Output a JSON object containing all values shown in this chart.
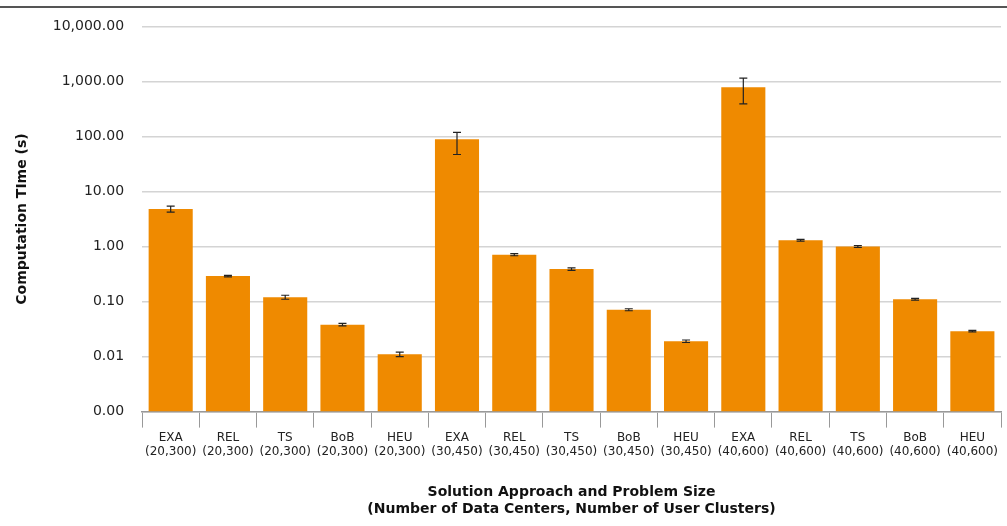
{
  "chart_data": {
    "type": "bar",
    "xlabel": "Solution Approach and Problem Size\n(Number of Data Centers, Number of User Clusters)",
    "ylabel": "Computation TIme (s)",
    "categories": [
      "EXA\n(20,300)",
      "REL\n(20,300)",
      "TS\n(20,300)",
      "BoB\n(20,300)",
      "HEU\n(20,300)",
      "EXA\n(30,450)",
      "REL\n(30,450)",
      "TS\n(30,450)",
      "BoB\n(30,450)",
      "HEU\n(30,450)",
      "EXA\n(40,600)",
      "REL\n(40,600)",
      "TS\n(40,600)",
      "BoB\n(40,600)",
      "HEU\n(40,600)"
    ],
    "values": [
      4.8,
      0.29,
      0.12,
      0.038,
      0.011,
      89,
      0.71,
      0.39,
      0.071,
      0.019,
      787,
      1.3,
      1.0,
      0.11,
      0.029
    ],
    "errors": [
      [
        4.2,
        5.4
      ],
      0.01,
      0.01,
      0.002,
      0.001,
      [
        47,
        119
      ],
      0.03,
      0.02,
      0.003,
      0.001,
      [
        390,
        1150
      ],
      0.05,
      0.04,
      0.004,
      0.001
    ],
    "color": "#ef8a00",
    "log": true,
    "ylim": [
      0.001,
      10000
    ],
    "yticks": [
      {
        "value": 0.001,
        "label": "0.00"
      },
      {
        "value": 0.01,
        "label": "0.01"
      },
      {
        "value": 0.1,
        "label": "0.10"
      },
      {
        "value": 1,
        "label": "1.00"
      },
      {
        "value": 10,
        "label": "10.00"
      },
      {
        "value": 100,
        "label": "100.00"
      },
      {
        "value": 1000,
        "label": "1,000.00"
      },
      {
        "value": 10000,
        "label": "10,000.00"
      }
    ],
    "grid": "y",
    "legend": false
  }
}
